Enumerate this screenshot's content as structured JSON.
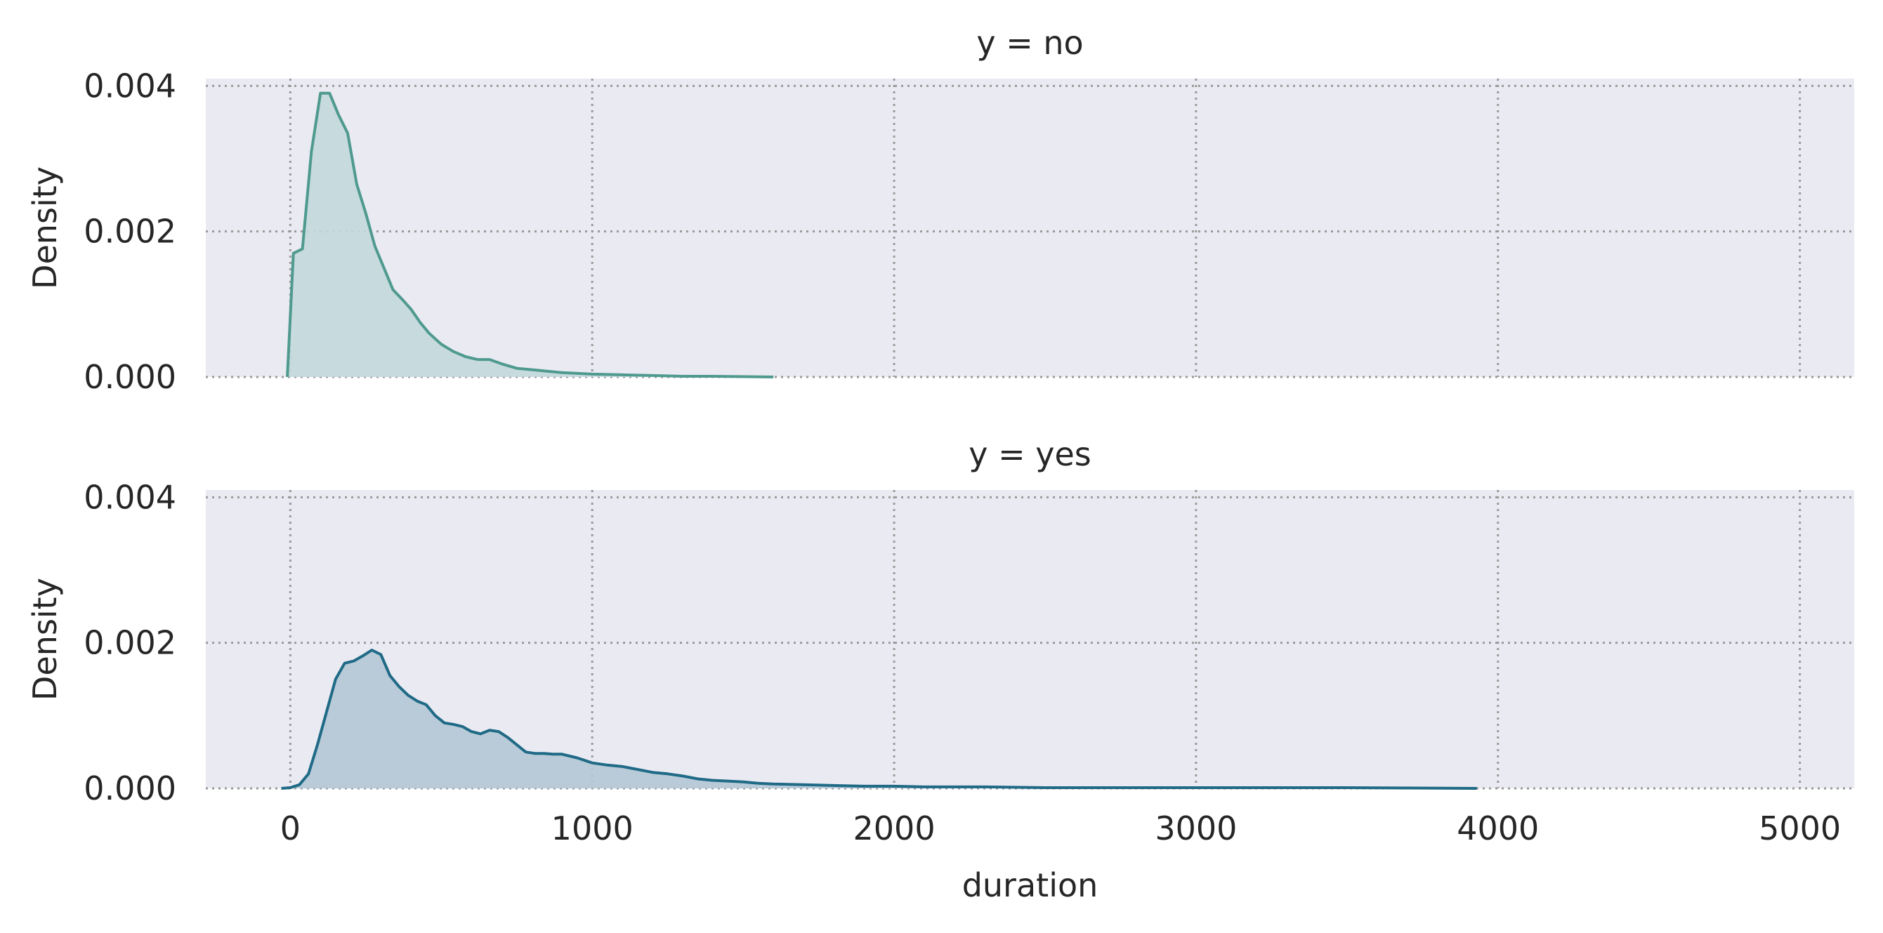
{
  "chart_data": [
    {
      "type": "area",
      "title": "y = no",
      "xlabel": "",
      "ylabel": "Density",
      "xlim": [
        -280,
        5180
      ],
      "ylim": [
        0,
        0.0041
      ],
      "xticks": [
        0,
        1000,
        2000,
        3000,
        4000,
        5000
      ],
      "xtick_labels": [
        "",
        "",
        "",
        "",
        "",
        ""
      ],
      "yticks": [
        0,
        0.002,
        0.004
      ],
      "ytick_labels": [
        "0.000",
        "0.002",
        "0.004"
      ],
      "grid": true,
      "color": "#4f9a8f",
      "fill_color": "#c3d8dc",
      "x": [
        -10,
        10,
        40,
        70,
        100,
        130,
        160,
        190,
        220,
        250,
        280,
        310,
        340,
        370,
        400,
        430,
        460,
        500,
        540,
        580,
        620,
        660,
        700,
        750,
        800,
        850,
        900,
        1000,
        1100,
        1200,
        1300,
        1400,
        1600
      ],
      "y": [
        0.0,
        0.0017,
        0.00176,
        0.0031,
        0.0039,
        0.0039,
        0.0036,
        0.00335,
        0.00265,
        0.00225,
        0.0018,
        0.0015,
        0.0012,
        0.00107,
        0.00093,
        0.00075,
        0.0006,
        0.00045,
        0.00035,
        0.00028,
        0.00024,
        0.00024,
        0.00018,
        0.00012,
        0.0001,
        8e-05,
        6e-05,
        4e-05,
        3e-05,
        2e-05,
        1e-05,
        1e-05,
        0.0
      ]
    },
    {
      "type": "area",
      "title": "y = yes",
      "xlabel": "duration",
      "ylabel": "Density",
      "xlim": [
        -280,
        5180
      ],
      "ylim": [
        0,
        0.0041
      ],
      "xticks": [
        0,
        1000,
        2000,
        3000,
        4000,
        5000
      ],
      "xtick_labels": [
        "0",
        "1000",
        "2000",
        "3000",
        "4000",
        "5000"
      ],
      "yticks": [
        0,
        0.002,
        0.004
      ],
      "ytick_labels": [
        "0.000",
        "0.002",
        "0.004"
      ],
      "grid": true,
      "color": "#1f6a86",
      "fill_color": "#b4c8d5",
      "x": [
        -30,
        0,
        30,
        60,
        90,
        120,
        150,
        180,
        210,
        240,
        270,
        300,
        330,
        360,
        390,
        420,
        450,
        480,
        510,
        540,
        570,
        600,
        630,
        660,
        690,
        720,
        750,
        780,
        810,
        840,
        870,
        900,
        950,
        1000,
        1050,
        1100,
        1150,
        1200,
        1250,
        1300,
        1350,
        1400,
        1450,
        1500,
        1550,
        1600,
        1700,
        1800,
        1900,
        2000,
        2100,
        2300,
        2500,
        2800,
        3100,
        3500,
        3930
      ],
      "y": [
        0.0,
        1e-05,
        5e-05,
        0.0002,
        0.0006,
        0.00105,
        0.0015,
        0.00172,
        0.00175,
        0.00182,
        0.0019,
        0.00184,
        0.00155,
        0.0014,
        0.00128,
        0.0012,
        0.00115,
        0.001,
        0.0009,
        0.00088,
        0.00085,
        0.00078,
        0.00075,
        0.0008,
        0.00078,
        0.0007,
        0.0006,
        0.0005,
        0.00048,
        0.00048,
        0.00047,
        0.00047,
        0.00042,
        0.00035,
        0.00032,
        0.0003,
        0.00026,
        0.00022,
        0.0002,
        0.00017,
        0.00013,
        0.00011,
        0.0001,
        9e-05,
        7e-05,
        6e-05,
        5e-05,
        4e-05,
        3e-05,
        3e-05,
        2e-05,
        2e-05,
        1e-05,
        1e-05,
        1e-05,
        1e-05,
        0.0
      ]
    }
  ]
}
